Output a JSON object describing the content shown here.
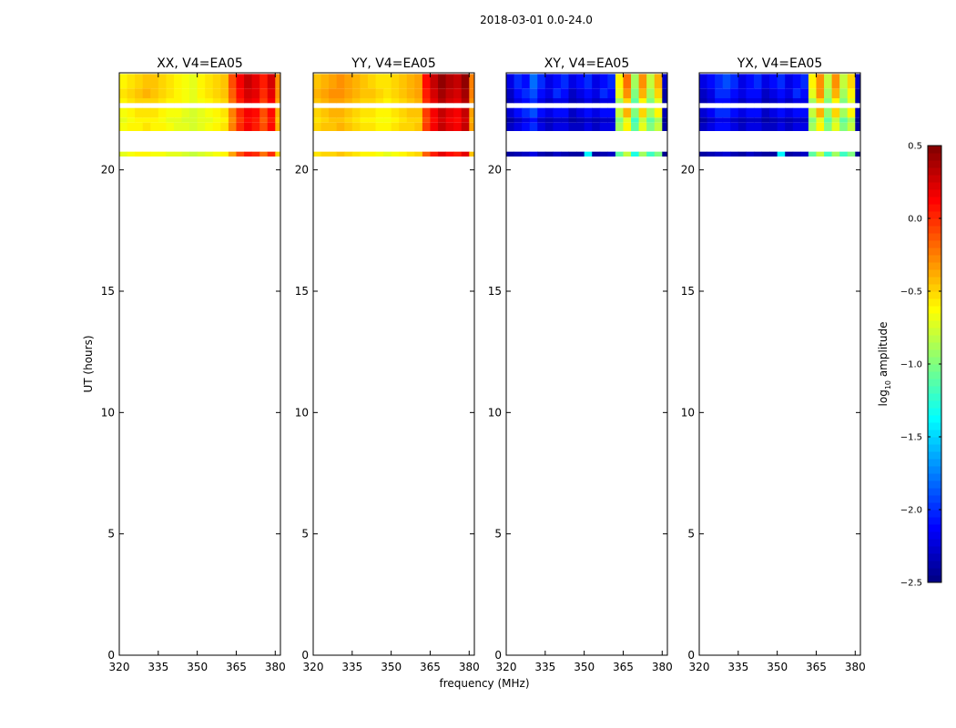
{
  "suptitle": "2018-03-01 0.0-24.0",
  "chart_data": {
    "type": "heatmap",
    "suptitle": "2018-03-01 0.0-24.0",
    "xlabel": "frequency (MHz)",
    "ylabel": "UT (hours)",
    "xlim": [
      320,
      382
    ],
    "ylim": [
      0,
      24
    ],
    "x_ticks": [
      320,
      335,
      350,
      365,
      380
    ],
    "y_ticks": [
      0,
      5,
      10,
      15,
      20
    ],
    "freq_edges": [
      320,
      323,
      326,
      329,
      332,
      335,
      338,
      341,
      344,
      347,
      350,
      353,
      356,
      359,
      362,
      365,
      368,
      371,
      374,
      377,
      380,
      382
    ],
    "time_bands": [
      {
        "start": 23.95,
        "end": 23.35
      },
      {
        "start": 23.35,
        "end": 22.95
      },
      {
        "start": 22.95,
        "end": 22.75
      },
      {
        "start": 22.55,
        "end": 22.15
      },
      {
        "start": 22.15,
        "end": 21.95
      },
      {
        "start": 21.95,
        "end": 21.6
      },
      {
        "start": 20.75,
        "end": 20.55
      }
    ],
    "panels": [
      {
        "title": "XX, V4=EA05",
        "rows": [
          [
            -0.6,
            -0.55,
            -0.5,
            -0.45,
            -0.45,
            -0.5,
            -0.55,
            -0.6,
            -0.65,
            -0.7,
            -0.6,
            -0.55,
            -0.5,
            -0.45,
            -0.1,
            0.15,
            0.3,
            0.2,
            0.05,
            0.25,
            -0.3
          ],
          [
            -0.55,
            -0.5,
            -0.45,
            -0.4,
            -0.45,
            -0.5,
            -0.55,
            -0.6,
            -0.65,
            -0.7,
            -0.6,
            -0.55,
            -0.5,
            -0.45,
            -0.15,
            0.1,
            0.25,
            0.2,
            0.0,
            0.2,
            -0.3
          ],
          [
            -0.6,
            -0.55,
            -0.5,
            -0.5,
            -0.5,
            -0.55,
            -0.6,
            -0.6,
            -0.65,
            -0.7,
            -0.65,
            -0.6,
            -0.55,
            -0.5,
            -0.2,
            0.05,
            0.2,
            0.15,
            -0.05,
            0.15,
            -0.35
          ],
          [
            -0.65,
            -0.6,
            -0.55,
            -0.55,
            -0.55,
            -0.6,
            -0.65,
            -0.65,
            -0.7,
            -0.75,
            -0.7,
            -0.65,
            -0.6,
            -0.55,
            -0.25,
            0.0,
            0.15,
            0.1,
            -0.1,
            0.1,
            -0.4
          ],
          [
            -0.7,
            -0.65,
            -0.6,
            -0.6,
            -0.6,
            -0.65,
            -0.7,
            -0.7,
            -0.75,
            -0.75,
            -0.7,
            -0.7,
            -0.65,
            -0.6,
            -0.3,
            -0.05,
            0.1,
            0.05,
            -0.15,
            0.05,
            -0.45
          ],
          [
            -0.65,
            -0.6,
            -0.6,
            -0.55,
            -0.6,
            -0.6,
            -0.65,
            -0.7,
            -0.7,
            -0.75,
            -0.7,
            -0.65,
            -0.6,
            -0.55,
            -0.25,
            0.0,
            0.15,
            0.05,
            -0.1,
            0.1,
            -0.4
          ],
          [
            -0.7,
            -0.65,
            -0.6,
            -0.6,
            -0.65,
            -0.65,
            -0.7,
            -0.7,
            -0.75,
            -0.8,
            -0.75,
            -0.7,
            -0.65,
            -0.6,
            -0.35,
            -0.1,
            0.05,
            0.0,
            -0.2,
            0.0,
            -0.5
          ]
        ]
      },
      {
        "title": "YY, V4=EA05",
        "rows": [
          [
            -0.45,
            -0.4,
            -0.35,
            -0.3,
            -0.35,
            -0.4,
            -0.45,
            -0.5,
            -0.55,
            -0.55,
            -0.5,
            -0.45,
            -0.4,
            -0.35,
            0.1,
            0.3,
            0.45,
            0.35,
            0.3,
            0.45,
            -0.25
          ],
          [
            -0.4,
            -0.35,
            -0.3,
            -0.3,
            -0.35,
            -0.4,
            -0.45,
            -0.45,
            -0.5,
            -0.55,
            -0.5,
            -0.45,
            -0.4,
            -0.35,
            0.05,
            0.25,
            0.4,
            0.3,
            0.25,
            0.4,
            -0.25
          ],
          [
            -0.45,
            -0.4,
            -0.35,
            -0.35,
            -0.4,
            -0.45,
            -0.5,
            -0.5,
            -0.55,
            -0.6,
            -0.55,
            -0.5,
            -0.45,
            -0.4,
            0.0,
            0.2,
            0.35,
            0.25,
            0.2,
            0.35,
            -0.3
          ],
          [
            -0.5,
            -0.45,
            -0.4,
            -0.4,
            -0.45,
            -0.5,
            -0.55,
            -0.55,
            -0.6,
            -0.6,
            -0.55,
            -0.5,
            -0.45,
            -0.45,
            -0.05,
            0.15,
            0.3,
            0.2,
            0.15,
            0.3,
            -0.35
          ],
          [
            -0.55,
            -0.5,
            -0.45,
            -0.45,
            -0.5,
            -0.55,
            -0.6,
            -0.6,
            -0.65,
            -0.65,
            -0.6,
            -0.55,
            -0.5,
            -0.5,
            -0.1,
            0.1,
            0.25,
            0.15,
            0.1,
            0.25,
            -0.4
          ],
          [
            -0.5,
            -0.45,
            -0.45,
            -0.4,
            -0.45,
            -0.5,
            -0.55,
            -0.55,
            -0.6,
            -0.6,
            -0.55,
            -0.5,
            -0.5,
            -0.45,
            -0.05,
            0.15,
            0.3,
            0.2,
            0.15,
            0.3,
            -0.35
          ],
          [
            -0.55,
            -0.5,
            -0.5,
            -0.45,
            -0.5,
            -0.55,
            -0.6,
            -0.6,
            -0.65,
            -0.7,
            -0.65,
            -0.6,
            -0.55,
            -0.5,
            -0.15,
            0.05,
            0.2,
            0.1,
            0.05,
            0.2,
            -0.45
          ]
        ]
      },
      {
        "title": "XY, V4=EA05",
        "rows": [
          [
            -2.2,
            -2.0,
            -2.1,
            -1.8,
            -2.0,
            -2.2,
            -2.1,
            -2.0,
            -2.2,
            -2.1,
            -2.0,
            -2.2,
            -2.1,
            -2.0,
            -0.6,
            -0.2,
            -0.9,
            -0.3,
            -0.8,
            -0.4,
            -2.3
          ],
          [
            -2.3,
            -2.1,
            -2.0,
            -1.9,
            -2.1,
            -2.2,
            -2.0,
            -2.1,
            -2.3,
            -2.2,
            -2.1,
            -2.2,
            -2.0,
            -2.1,
            -0.7,
            -0.3,
            -1.0,
            -0.4,
            -0.9,
            -0.5,
            -2.4
          ],
          [
            -2.35,
            -2.2,
            -2.1,
            -2.0,
            -2.2,
            -2.3,
            -2.2,
            -2.2,
            -2.35,
            -2.3,
            -2.2,
            -2.3,
            -2.2,
            -2.2,
            -0.9,
            -0.5,
            -1.1,
            -0.6,
            -1.0,
            -0.7,
            -2.4
          ],
          [
            -2.25,
            -2.1,
            -2.0,
            -1.9,
            -2.1,
            -2.2,
            -2.1,
            -2.1,
            -2.3,
            -2.2,
            -2.1,
            -2.2,
            -2.1,
            -2.1,
            -0.8,
            -0.4,
            -1.0,
            -0.5,
            -0.9,
            -0.6,
            -2.35
          ],
          [
            -2.4,
            -2.3,
            -2.2,
            -2.1,
            -2.3,
            -2.35,
            -2.3,
            -2.3,
            -2.4,
            -2.35,
            -2.3,
            -2.35,
            -2.3,
            -2.3,
            -1.0,
            -0.7,
            -1.2,
            -0.8,
            -1.1,
            -0.9,
            -2.45
          ],
          [
            -2.3,
            -2.2,
            -2.1,
            -2.0,
            -2.2,
            -2.3,
            -2.2,
            -2.2,
            -2.3,
            -2.3,
            -2.2,
            -2.3,
            -2.2,
            -2.2,
            -0.9,
            -0.6,
            -1.1,
            -0.7,
            -1.0,
            -0.8,
            -2.4
          ],
          [
            -2.4,
            -2.35,
            -2.3,
            -2.2,
            -2.35,
            -2.4,
            -2.3,
            -2.35,
            -2.4,
            -2.4,
            -1.4,
            -2.4,
            -2.35,
            -2.3,
            -1.1,
            -0.8,
            -1.3,
            -0.9,
            -1.2,
            -1.0,
            -2.45
          ]
        ]
      },
      {
        "title": "YX, V4=EA05",
        "rows": [
          [
            -2.2,
            -2.1,
            -2.0,
            -1.9,
            -2.0,
            -2.2,
            -2.1,
            -2.0,
            -2.2,
            -2.1,
            -2.0,
            -2.2,
            -2.1,
            -2.0,
            -0.6,
            -0.3,
            -0.8,
            -0.3,
            -0.8,
            -0.5,
            -2.3
          ],
          [
            -2.3,
            -2.2,
            -2.0,
            -2.0,
            -2.1,
            -2.2,
            -2.1,
            -2.1,
            -2.3,
            -2.2,
            -2.1,
            -2.2,
            -2.0,
            -2.1,
            -0.7,
            -0.3,
            -0.9,
            -0.4,
            -0.9,
            -0.6,
            -2.4
          ],
          [
            -2.35,
            -2.25,
            -2.1,
            -2.1,
            -2.2,
            -2.3,
            -2.2,
            -2.2,
            -2.35,
            -2.3,
            -2.2,
            -2.3,
            -2.2,
            -2.2,
            -0.9,
            -0.5,
            -1.0,
            -0.6,
            -1.0,
            -0.7,
            -2.4
          ],
          [
            -2.25,
            -2.15,
            -2.0,
            -2.0,
            -2.1,
            -2.2,
            -2.1,
            -2.1,
            -2.3,
            -2.2,
            -2.1,
            -2.2,
            -2.1,
            -2.1,
            -0.8,
            -0.4,
            -0.95,
            -0.5,
            -0.9,
            -0.6,
            -2.35
          ],
          [
            -2.4,
            -2.3,
            -2.2,
            -2.2,
            -2.3,
            -2.35,
            -2.3,
            -2.3,
            -2.4,
            -2.35,
            -2.3,
            -2.35,
            -2.3,
            -2.3,
            -1.0,
            -0.7,
            -1.1,
            -0.8,
            -1.1,
            -0.9,
            -2.45
          ],
          [
            -2.3,
            -2.2,
            -2.1,
            -2.1,
            -2.2,
            -2.3,
            -2.2,
            -2.2,
            -2.3,
            -2.3,
            -2.2,
            -2.3,
            -2.2,
            -2.2,
            -0.9,
            -0.6,
            -1.0,
            -0.7,
            -1.0,
            -0.8,
            -2.4
          ],
          [
            -2.4,
            -2.35,
            -2.3,
            -2.25,
            -2.35,
            -2.4,
            -2.3,
            -2.35,
            -2.4,
            -2.4,
            -1.4,
            -2.4,
            -2.35,
            -2.3,
            -1.1,
            -0.8,
            -1.2,
            -0.9,
            -1.2,
            -1.0,
            -2.45
          ]
        ]
      }
    ],
    "colorbar": {
      "label": "log",
      "label_sub": "10",
      "label_rest": " amplitude",
      "vmin": -2.5,
      "vmax": 0.5,
      "ticks": [
        0.5,
        0.0,
        -0.5,
        -1.0,
        -1.5,
        -2.0,
        -2.5
      ],
      "tick_labels": [
        "0.5",
        "0.0",
        "−0.5",
        "−1.0",
        "−1.5",
        "−2.0",
        "−2.5"
      ],
      "colormap": "jet"
    }
  }
}
